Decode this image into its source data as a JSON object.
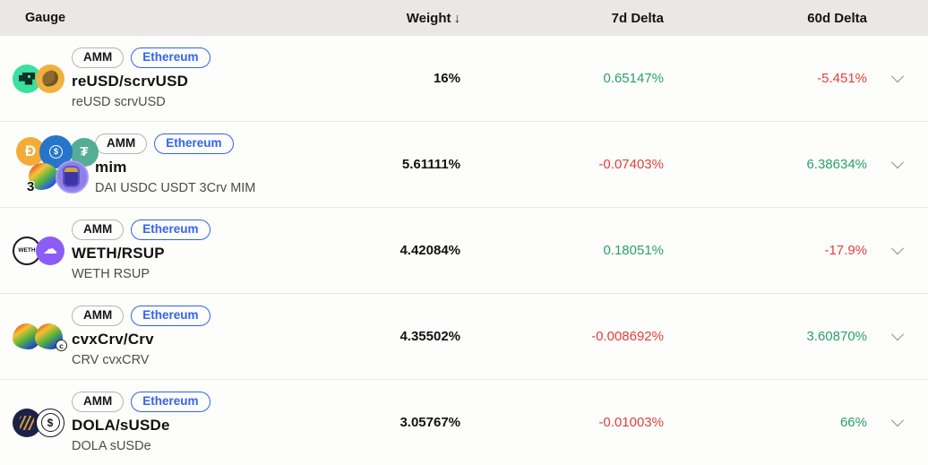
{
  "header": {
    "columns": [
      {
        "label": "Gauge"
      },
      {
        "label": "Weight",
        "sort_indicator": "↓"
      },
      {
        "label": "7d Delta"
      },
      {
        "label": "60d Delta"
      }
    ]
  },
  "colors": {
    "positive": "#2aa06a",
    "negative": "#e2403a",
    "ethereum": "#3462ef",
    "headerBg": "#e9e8e6",
    "rowBg": "#fdfdfc",
    "divider": "#e8e7e4",
    "chevron": "#8a8a8a"
  },
  "rows": [
    {
      "name": "reUSD/scrvUSD",
      "subtitle": "reUSD scrvUSD",
      "tags": [
        "AMM",
        "Ethereum"
      ],
      "weight": "16%",
      "delta_7d": {
        "value": "0.65147%",
        "direction": "positive"
      },
      "delta_60d": {
        "value": "-5.451%",
        "direction": "negative"
      },
      "icon_layout": "pair",
      "icons": [
        {
          "name": "reusd-icon",
          "type": "reusd",
          "glyph": ""
        },
        {
          "name": "scrvusd-icon",
          "type": "scrvusd",
          "glyph": ""
        }
      ]
    },
    {
      "name": "mim",
      "subtitle": "DAI USDC USDT 3Crv MIM",
      "tags": [
        "AMM",
        "Ethereum"
      ],
      "weight": "5.61111%",
      "delta_7d": {
        "value": "-0.07403%",
        "direction": "negative"
      },
      "delta_60d": {
        "value": "6.38634%",
        "direction": "positive"
      },
      "icon_layout": "cluster",
      "icons": [
        {
          "name": "dai-icon",
          "type": "dai",
          "glyph": "Ð"
        },
        {
          "name": "usdc-icon",
          "type": "usdc",
          "glyph": "$"
        },
        {
          "name": "usdt-icon",
          "type": "usdt",
          "glyph": "₮"
        },
        {
          "name": "3crv-icon",
          "type": "3crv",
          "glyph": "3"
        },
        {
          "name": "mim-icon",
          "type": "mim",
          "glyph": ""
        }
      ]
    },
    {
      "name": "WETH/RSUP",
      "subtitle": "WETH RSUP",
      "tags": [
        "AMM",
        "Ethereum"
      ],
      "weight": "4.42084%",
      "delta_7d": {
        "value": "0.18051%",
        "direction": "positive"
      },
      "delta_60d": {
        "value": "-17.9%",
        "direction": "negative"
      },
      "icon_layout": "pair",
      "icons": [
        {
          "name": "weth-icon",
          "type": "weth",
          "glyph": "WETH"
        },
        {
          "name": "rsup-icon",
          "type": "rsup",
          "glyph": "☁"
        }
      ]
    },
    {
      "name": "cvxCrv/Crv",
      "subtitle": "CRV cvxCRV",
      "tags": [
        "AMM",
        "Ethereum"
      ],
      "weight": "4.35502%",
      "delta_7d": {
        "value": "-0.008692%",
        "direction": "negative"
      },
      "delta_60d": {
        "value": "3.60870%",
        "direction": "positive"
      },
      "icon_layout": "pair",
      "icons": [
        {
          "name": "crv-icon",
          "type": "crv",
          "glyph": ""
        },
        {
          "name": "cvxcrv-icon",
          "type": "cvxcrv",
          "glyph": "",
          "badge": "c"
        }
      ]
    },
    {
      "name": "DOLA/sUSDe",
      "subtitle": "DOLA sUSDe",
      "tags": [
        "AMM",
        "Ethereum"
      ],
      "weight": "3.05767%",
      "delta_7d": {
        "value": "-0.01003%",
        "direction": "negative"
      },
      "delta_60d": {
        "value": "66%",
        "direction": "positive"
      },
      "icon_layout": "pair",
      "icons": [
        {
          "name": "dola-icon",
          "type": "dola",
          "glyph": ""
        },
        {
          "name": "susde-icon",
          "type": "susde",
          "glyph": "$"
        }
      ]
    }
  ]
}
